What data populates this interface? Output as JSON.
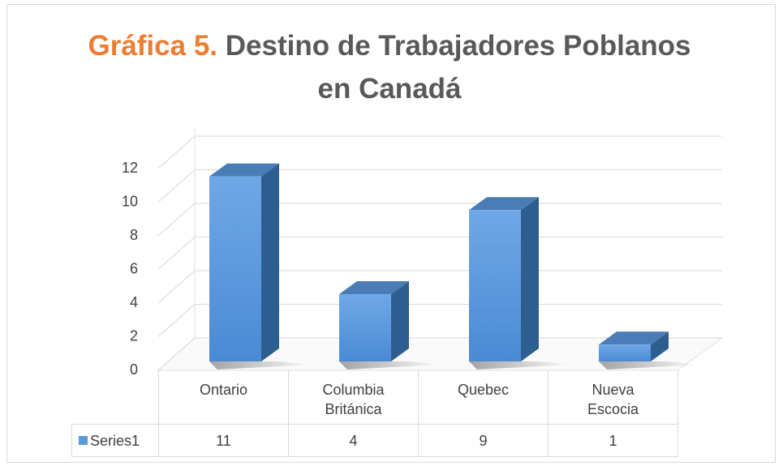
{
  "chart_data": {
    "type": "bar3d",
    "title": {
      "prefix": "Gráfica 5.",
      "text": "Destino de Trabajadores Poblanos en Canadá"
    },
    "categories": [
      "Ontario",
      "Columbia Británica",
      "Quebec",
      "Nueva Escocia"
    ],
    "series": [
      {
        "name": "Series1",
        "color": "#5b9bd5",
        "values": [
          11,
          4,
          9,
          1
        ]
      }
    ],
    "ylim": [
      0,
      12
    ],
    "yticks": [
      0,
      2,
      4,
      6,
      8,
      10,
      12
    ],
    "grid": true,
    "data_table": true
  }
}
